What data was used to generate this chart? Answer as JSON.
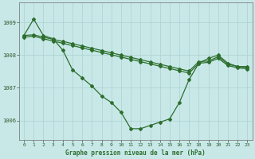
{
  "title": "Graphe pression niveau de la mer (hPa)",
  "background_color": "#c8e8e8",
  "grid_color": "#b0d4d4",
  "line_color": "#2d6e2d",
  "xlim": [
    -0.5,
    23.5
  ],
  "ylim": [
    1005.4,
    1009.6
  ],
  "yticks": [
    1006,
    1007,
    1008,
    1009
  ],
  "xticks": [
    0,
    1,
    2,
    3,
    4,
    5,
    6,
    7,
    8,
    9,
    10,
    11,
    12,
    13,
    14,
    15,
    16,
    17,
    18,
    19,
    20,
    21,
    22,
    23
  ],
  "series1": [
    1008.6,
    1009.1,
    1008.6,
    1008.5,
    1008.15,
    1007.55,
    1007.3,
    1007.05,
    1006.75,
    1006.55,
    1006.25,
    1005.75,
    1005.75,
    1005.85,
    1005.95,
    1006.05,
    1006.55,
    1007.25,
    1007.75,
    1007.9,
    1008.0,
    1007.75,
    1007.65,
    1007.65
  ],
  "series2": [
    1008.6,
    1008.62,
    1008.55,
    1008.48,
    1008.42,
    1008.35,
    1008.28,
    1008.21,
    1008.14,
    1008.07,
    1008.0,
    1007.93,
    1007.86,
    1007.79,
    1007.72,
    1007.65,
    1007.58,
    1007.51,
    1007.8,
    1007.82,
    1007.95,
    1007.72,
    1007.65,
    1007.62
  ],
  "series3": [
    1008.55,
    1008.58,
    1008.5,
    1008.43,
    1008.36,
    1008.29,
    1008.22,
    1008.15,
    1008.08,
    1008.01,
    1007.94,
    1007.87,
    1007.8,
    1007.73,
    1007.66,
    1007.59,
    1007.52,
    1007.45,
    1007.75,
    1007.78,
    1007.9,
    1007.68,
    1007.61,
    1007.58
  ],
  "marker": "D",
  "markersize": 2.0,
  "linewidth": 0.9
}
